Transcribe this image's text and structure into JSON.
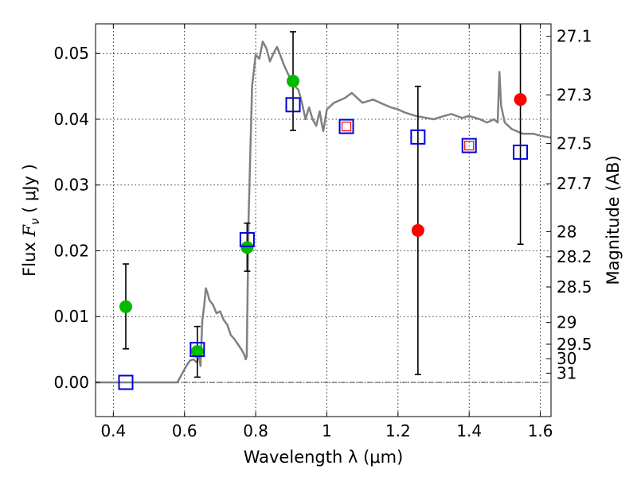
{
  "chart_data": {
    "type": "scatter",
    "xlabel": "Wavelength  λ (μm)",
    "ylabel": "Flux  F_ν  ( μJy )",
    "ylabel_parts": {
      "prefix": "Flux  ",
      "symbol": "F",
      "subscript": "ν",
      "suffix": "  ( μJy )"
    },
    "y2label": "Magnitude (AB)",
    "xlim": [
      0.35,
      1.63
    ],
    "ylim": [
      -0.0052,
      0.0545
    ],
    "grid": true,
    "x_ticks": [
      {
        "value": 0.4,
        "label": "0.4"
      },
      {
        "value": 0.6,
        "label": "0.6"
      },
      {
        "value": 0.8,
        "label": "0.8"
      },
      {
        "value": 1.0,
        "label": "1"
      },
      {
        "value": 1.2,
        "label": "1.2"
      },
      {
        "value": 1.4,
        "label": "1.4"
      },
      {
        "value": 1.6,
        "label": "1.6"
      }
    ],
    "y_ticks": [
      {
        "value": 0.0,
        "label": "0.00"
      },
      {
        "value": 0.01,
        "label": "0.01"
      },
      {
        "value": 0.02,
        "label": "0.02"
      },
      {
        "value": 0.03,
        "label": "0.03"
      },
      {
        "value": 0.04,
        "label": "0.04"
      },
      {
        "value": 0.05,
        "label": "0.05"
      }
    ],
    "mag_ticks": [
      {
        "flux": 0.0526,
        "label": "27.1"
      },
      {
        "flux": 0.0437,
        "label": "27.3"
      },
      {
        "flux": 0.0363,
        "label": "27.5"
      },
      {
        "flux": 0.0302,
        "label": "27.7"
      },
      {
        "flux": 0.0229,
        "label": "28"
      },
      {
        "flux": 0.0191,
        "label": "28.2"
      },
      {
        "flux": 0.0145,
        "label": "28.5"
      },
      {
        "flux": 0.0091,
        "label": "29"
      },
      {
        "flux": 0.0058,
        "label": "29.5"
      },
      {
        "flux": 0.0036,
        "label": "30"
      },
      {
        "flux": 0.0014,
        "label": "31"
      }
    ],
    "model_spectrum": {
      "x": [
        0.35,
        0.4,
        0.45,
        0.5,
        0.55,
        0.58,
        0.595,
        0.605,
        0.615,
        0.625,
        0.635,
        0.64,
        0.645,
        0.65,
        0.655,
        0.66,
        0.665,
        0.67,
        0.68,
        0.69,
        0.7,
        0.71,
        0.72,
        0.73,
        0.74,
        0.75,
        0.76,
        0.768,
        0.772,
        0.775,
        0.78,
        0.79,
        0.8,
        0.81,
        0.82,
        0.83,
        0.84,
        0.85,
        0.86,
        0.87,
        0.88,
        0.89,
        0.9,
        0.91,
        0.92,
        0.93,
        0.94,
        0.95,
        0.96,
        0.97,
        0.98,
        0.985,
        0.99,
        1.0,
        1.02,
        1.05,
        1.07,
        1.1,
        1.13,
        1.15,
        1.18,
        1.2,
        1.22,
        1.25,
        1.28,
        1.3,
        1.33,
        1.35,
        1.38,
        1.4,
        1.43,
        1.45,
        1.47,
        1.48,
        1.485,
        1.49,
        1.5,
        1.52,
        1.55,
        1.58,
        1.6,
        1.63
      ],
      "y": [
        0.0,
        0.0,
        0.0,
        0.0,
        0.0,
        0.0,
        0.0015,
        0.0025,
        0.0033,
        0.0035,
        0.003,
        0.0045,
        0.0025,
        0.0095,
        0.0115,
        0.0143,
        0.0135,
        0.0125,
        0.0118,
        0.0105,
        0.0108,
        0.0095,
        0.0088,
        0.0072,
        0.0066,
        0.0058,
        0.005,
        0.0042,
        0.0035,
        0.004,
        0.025,
        0.045,
        0.0498,
        0.0492,
        0.0518,
        0.0508,
        0.0488,
        0.05,
        0.051,
        0.0496,
        0.0482,
        0.047,
        0.046,
        0.045,
        0.0445,
        0.0425,
        0.04,
        0.0418,
        0.04,
        0.039,
        0.0412,
        0.0395,
        0.0382,
        0.0415,
        0.0425,
        0.0432,
        0.044,
        0.0425,
        0.043,
        0.0425,
        0.0418,
        0.0415,
        0.041,
        0.0405,
        0.0402,
        0.04,
        0.0405,
        0.0408,
        0.0402,
        0.0405,
        0.04,
        0.0395,
        0.04,
        0.0395,
        0.0472,
        0.042,
        0.0395,
        0.0385,
        0.0378,
        0.0378,
        0.0375,
        0.0372
      ],
      "color": "#808080"
    },
    "series": [
      {
        "marker": "circle",
        "color": "#00bb00",
        "x": [
          0.435,
          0.636,
          0.776,
          0.905
        ],
        "y": [
          0.0115,
          0.0047,
          0.0205,
          0.0458
        ],
        "err_low": [
          0.0051,
          0.0008,
          0.0169,
          0.0383
        ],
        "err_high": [
          0.018,
          0.0085,
          0.0242,
          0.0533
        ]
      },
      {
        "marker": "circle",
        "color": "#ff0000",
        "x": [
          1.256,
          1.544
        ],
        "y": [
          0.0231,
          0.043
        ],
        "err_low": [
          0.0012,
          0.021
        ],
        "err_high": [
          0.045,
          0.0545
        ]
      },
      {
        "marker": "square-open",
        "color": "#0000dd",
        "x": [
          0.435,
          0.636,
          0.776,
          0.905,
          1.055,
          1.256,
          1.4,
          1.544
        ],
        "y": [
          0.0,
          0.005,
          0.0217,
          0.0422,
          0.0389,
          0.0373,
          0.036,
          0.035
        ]
      },
      {
        "marker": "square-open-small",
        "color": "#ff0000",
        "x": [
          1.055,
          1.4
        ],
        "y": [
          0.0389,
          0.036
        ]
      }
    ]
  }
}
